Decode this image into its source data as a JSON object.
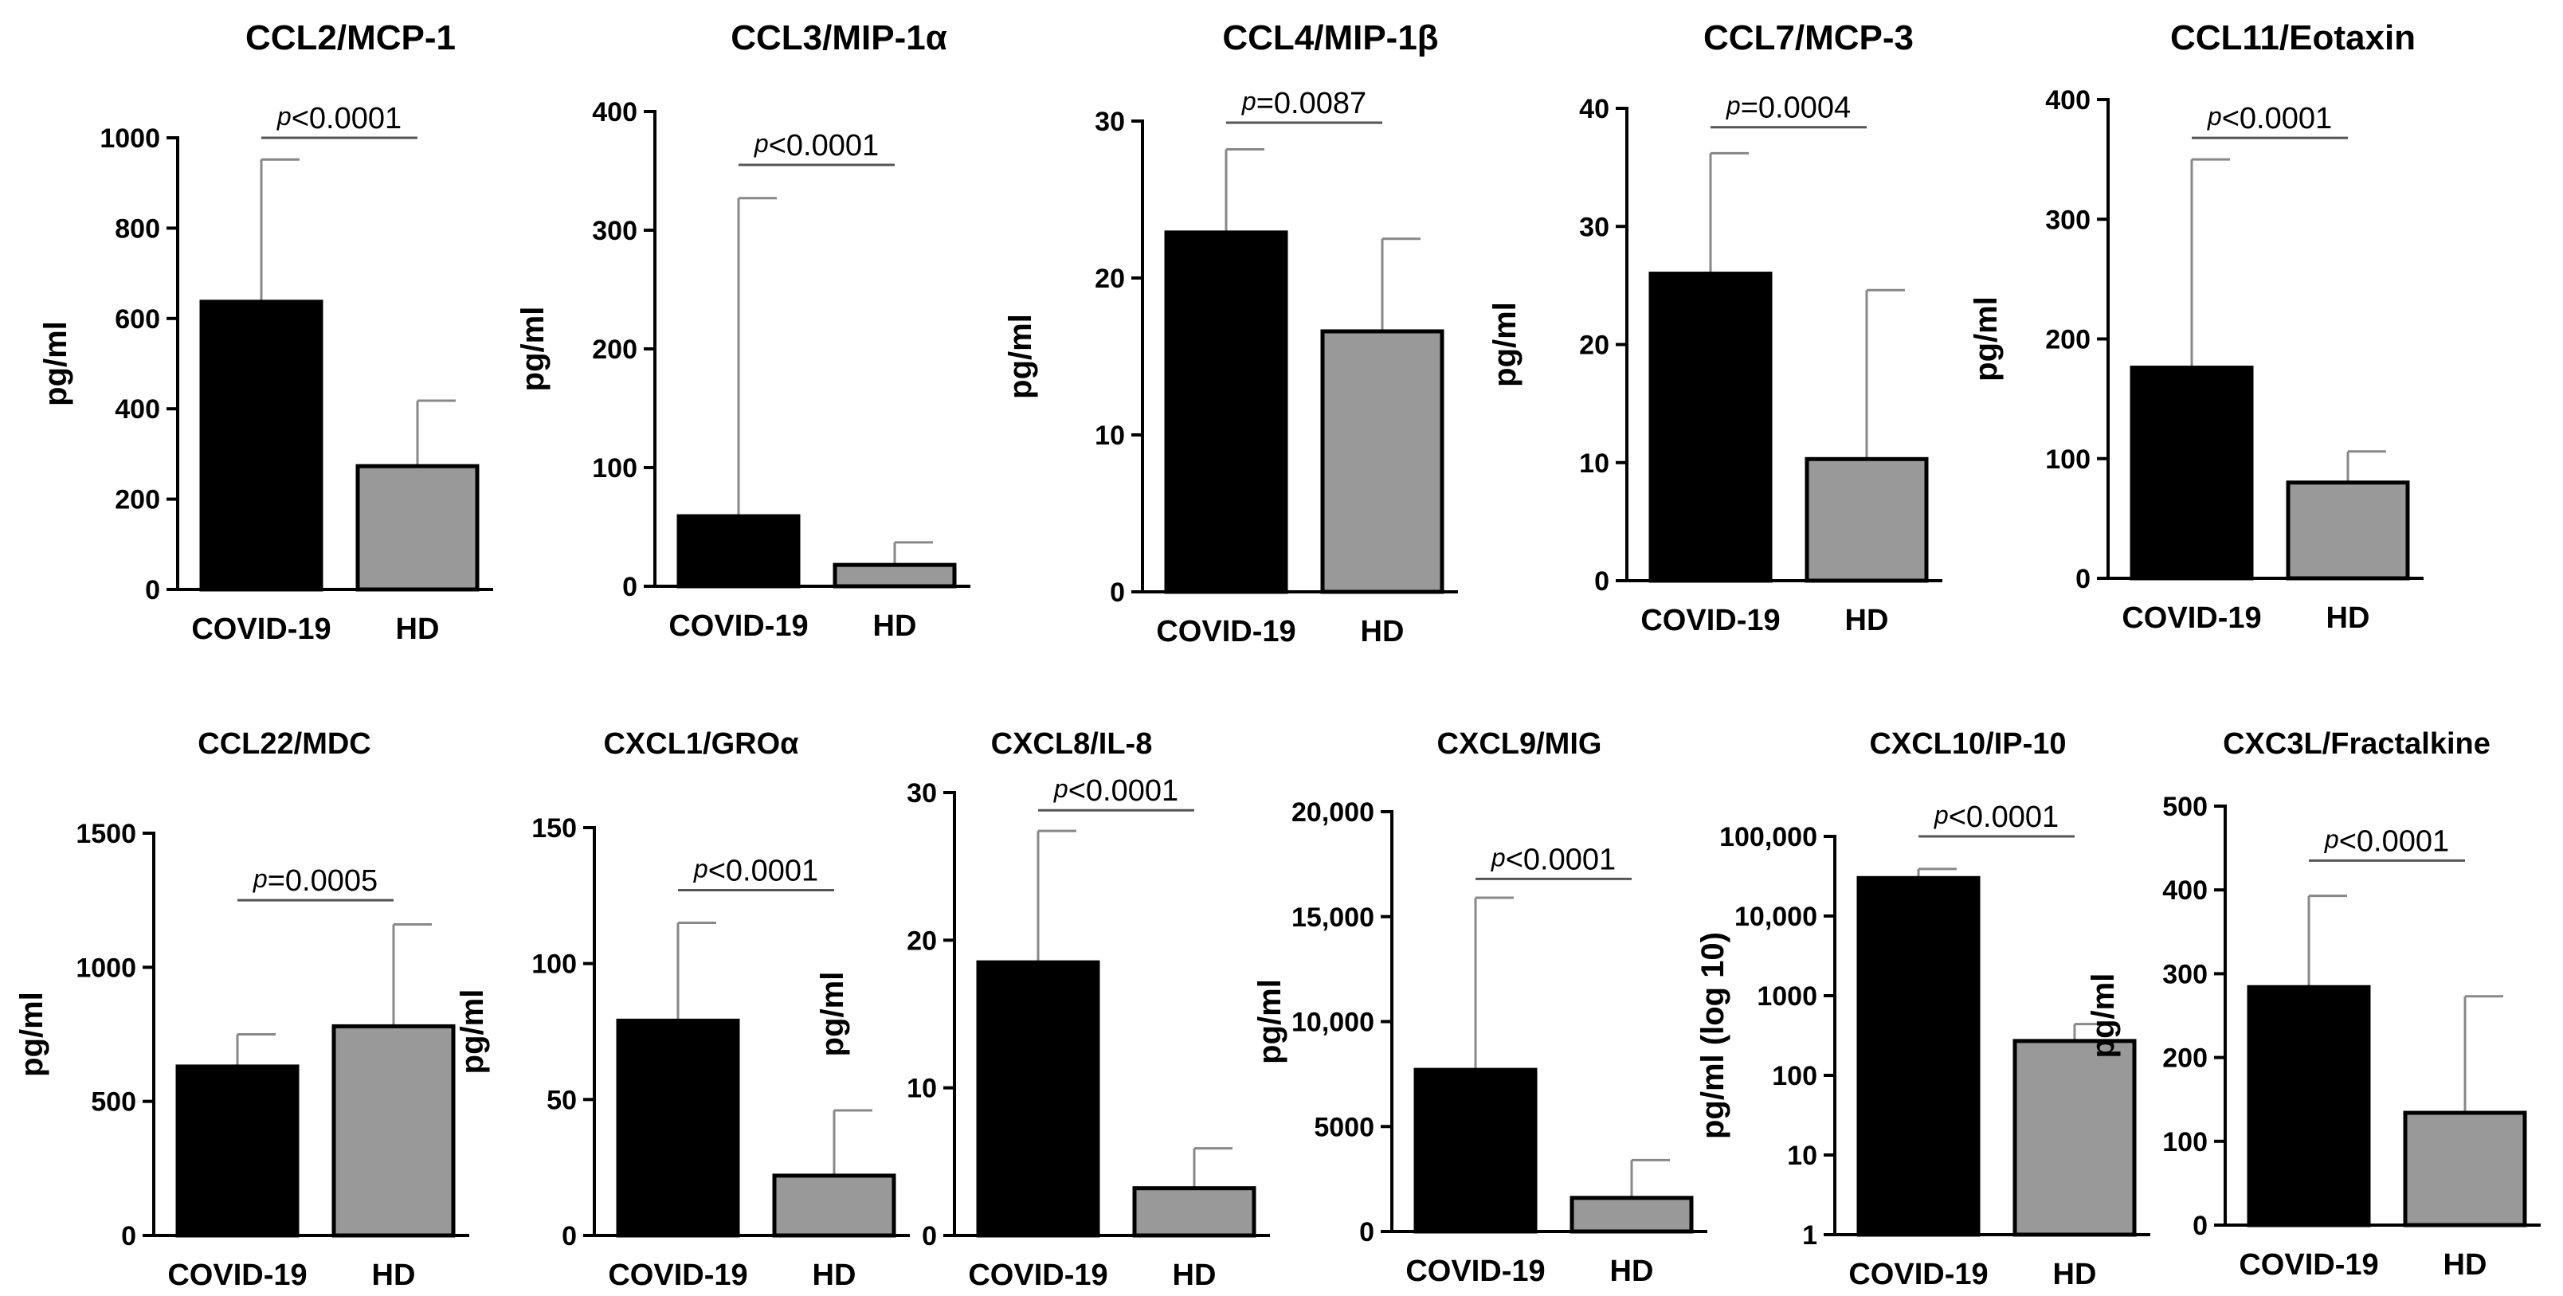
{
  "chart_data": [
    {
      "type": "bar",
      "title": "CCL2/MCP-1",
      "ylabel": "pg/ml",
      "scale": "linear",
      "ylim": [
        0,
        1000
      ],
      "yticks": [
        0,
        200,
        400,
        600,
        800,
        1000
      ],
      "ytick_labels": [
        "0",
        "200",
        "400",
        "600",
        "800",
        "1000"
      ],
      "categories": [
        "COVID-19",
        "HD"
      ],
      "values": [
        637,
        273
      ],
      "errors": [
        952,
        418
      ],
      "bar_colors": [
        "#000000",
        "#999999"
      ],
      "pvalue": {
        "prefix": "p",
        "text": "<0.0001"
      },
      "pline_value": 1000
    },
    {
      "type": "bar",
      "title": "CCL3/MIP-1α",
      "ylabel": "pg/ml",
      "scale": "linear",
      "ylim": [
        0,
        400
      ],
      "yticks": [
        0,
        100,
        200,
        300,
        400
      ],
      "ytick_labels": [
        "0",
        "100",
        "200",
        "300",
        "400"
      ],
      "categories": [
        "COVID-19",
        "HD"
      ],
      "values": [
        59,
        18
      ],
      "errors": [
        327,
        37
      ],
      "bar_colors": [
        "#000000",
        "#999999"
      ],
      "pvalue": {
        "prefix": "p",
        "text": "<0.0001"
      },
      "pline_value": 355
    },
    {
      "type": "bar",
      "title": "CCL4/MIP-1β",
      "ylabel": "pg/ml",
      "scale": "linear",
      "ylim": [
        0,
        30
      ],
      "yticks": [
        0,
        10,
        20,
        30
      ],
      "ytick_labels": [
        "0",
        "10",
        "20",
        "30"
      ],
      "categories": [
        "COVID-19",
        "HD"
      ],
      "values": [
        22.9,
        16.6
      ],
      "errors": [
        28.2,
        22.5
      ],
      "bar_colors": [
        "#000000",
        "#999999"
      ],
      "pvalue": {
        "prefix": "p",
        "text": "=0.0087"
      },
      "pline_value": 29.9
    },
    {
      "type": "bar",
      "title": "CCL7/MCP-3",
      "ylabel": "pg/ml",
      "scale": "linear",
      "ylim": [
        0,
        40
      ],
      "yticks": [
        0,
        10,
        20,
        30,
        40
      ],
      "ytick_labels": [
        "0",
        "10",
        "20",
        "30",
        "40"
      ],
      "categories": [
        "COVID-19",
        "HD"
      ],
      "values": [
        26,
        10.3
      ],
      "errors": [
        36.2,
        24.6
      ],
      "bar_colors": [
        "#000000",
        "#999999"
      ],
      "pvalue": {
        "prefix": "p",
        "text": "=0.0004"
      },
      "pline_value": 38.4
    },
    {
      "type": "bar",
      "title": "CCL11/Eotaxin",
      "ylabel": "pg/ml",
      "scale": "linear",
      "ylim": [
        0,
        400
      ],
      "yticks": [
        0,
        100,
        200,
        300,
        400
      ],
      "ytick_labels": [
        "0",
        "100",
        "200",
        "300",
        "400"
      ],
      "categories": [
        "COVID-19",
        "HD"
      ],
      "values": [
        176,
        80
      ],
      "errors": [
        350,
        106
      ],
      "bar_colors": [
        "#000000",
        "#999999"
      ],
      "pvalue": {
        "prefix": "p",
        "text": "<0.0001"
      },
      "pline_value": 368
    },
    {
      "type": "bar",
      "title": "CCL22/MDC",
      "ylabel": "pg/ml",
      "scale": "linear",
      "ylim": [
        0,
        1500
      ],
      "yticks": [
        0,
        500,
        1000,
        1500
      ],
      "ytick_labels": [
        "0",
        "500",
        "1000",
        "1500"
      ],
      "categories": [
        "COVID-19",
        "HD"
      ],
      "values": [
        630,
        780
      ],
      "errors": [
        750,
        1160
      ],
      "bar_colors": [
        "#000000",
        "#999999"
      ],
      "pvalue": {
        "prefix": "p",
        "text": "=0.0005"
      },
      "pline_value": 1250
    },
    {
      "type": "bar",
      "title": "CXCL1/GROα",
      "ylabel": "pg/ml",
      "scale": "linear",
      "ylim": [
        0,
        150
      ],
      "yticks": [
        0,
        50,
        100,
        150
      ],
      "ytick_labels": [
        "0",
        "50",
        "100",
        "150"
      ],
      "categories": [
        "COVID-19",
        "HD"
      ],
      "values": [
        79,
        22
      ],
      "errors": [
        115,
        46
      ],
      "bar_colors": [
        "#000000",
        "#999999"
      ],
      "pvalue": {
        "prefix": "p",
        "text": "<0.0001"
      },
      "pline_value": 127
    },
    {
      "type": "bar",
      "title": "CXCL8/IL-8",
      "ylabel": "pg/ml",
      "scale": "linear",
      "ylim": [
        0,
        30
      ],
      "yticks": [
        0,
        10,
        20,
        30
      ],
      "ytick_labels": [
        "0",
        "10",
        "20",
        "30"
      ],
      "categories": [
        "COVID-19",
        "HD"
      ],
      "values": [
        18.5,
        3.2
      ],
      "errors": [
        27.4,
        5.9
      ],
      "bar_colors": [
        "#000000",
        "#999999"
      ],
      "pvalue": {
        "prefix": "p",
        "text": "<0.0001"
      },
      "pline_value": 28.8
    },
    {
      "type": "bar",
      "title": "CXCL9/MIG",
      "ylabel": "pg/ml",
      "scale": "linear",
      "ylim": [
        0,
        20000
      ],
      "yticks": [
        0,
        5000,
        10000,
        15000,
        20000
      ],
      "ytick_labels": [
        "0",
        "5000",
        "10,000",
        "15,000",
        "20,000"
      ],
      "categories": [
        "COVID-19",
        "HD"
      ],
      "values": [
        7700,
        1600
      ],
      "errors": [
        15900,
        3400
      ],
      "bar_colors": [
        "#000000",
        "#999999"
      ],
      "pvalue": {
        "prefix": "p",
        "text": "<0.0001"
      },
      "pline_value": 16800
    },
    {
      "type": "bar",
      "title": "CXCL10/IP-10",
      "ylabel": "pg/ml  (log 10)",
      "scale": "log",
      "ylim": [
        1,
        100000
      ],
      "yticks": [
        1,
        10,
        100,
        1000,
        10000,
        100000
      ],
      "ytick_labels": [
        "1",
        "10",
        "100",
        "1000",
        "10,000",
        "100,000"
      ],
      "categories": [
        "COVID-19",
        "HD"
      ],
      "values": [
        30000,
        270
      ],
      "errors": [
        39000,
        440
      ],
      "bar_colors": [
        "#000000",
        "#999999"
      ],
      "pvalue": {
        "prefix": "p",
        "text": "<0.0001"
      },
      "pline_value": 100000
    },
    {
      "type": "bar",
      "title": "CXC3L/Fractalkine",
      "ylabel": "pg/ml",
      "scale": "linear",
      "ylim": [
        0,
        500
      ],
      "yticks": [
        0,
        100,
        200,
        300,
        400,
        500
      ],
      "ytick_labels": [
        "0",
        "100",
        "200",
        "300",
        "400",
        "500"
      ],
      "categories": [
        "COVID-19",
        "HD"
      ],
      "values": [
        284,
        134
      ],
      "errors": [
        393,
        273
      ],
      "bar_colors": [
        "#000000",
        "#999999"
      ],
      "pvalue": {
        "prefix": "p",
        "text": "<0.0001"
      },
      "pline_value": 435
    }
  ]
}
